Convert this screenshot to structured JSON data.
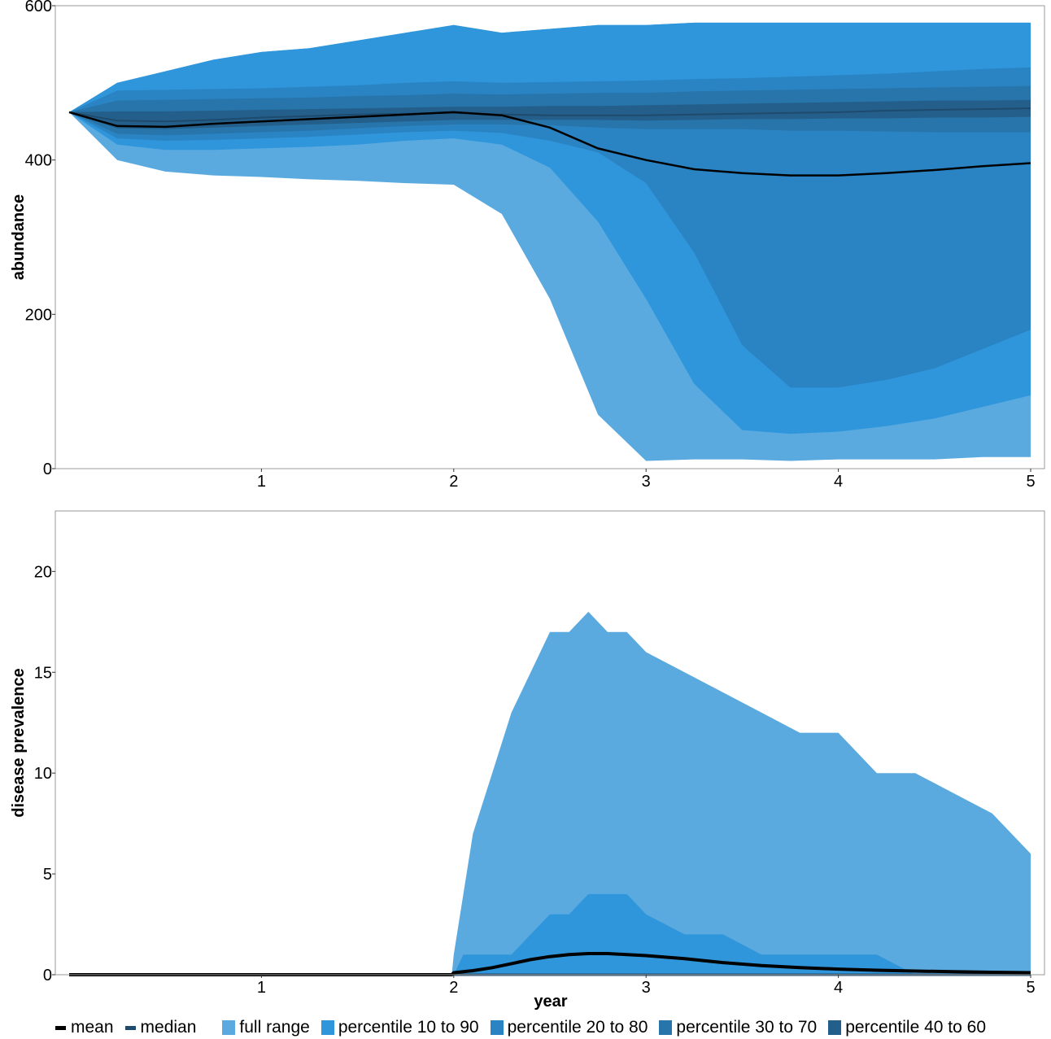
{
  "colors": {
    "full_range": "#5aaae0",
    "p10_90": "#2f96dc",
    "p20_80": "#2a84c3",
    "p30_70": "#2775aa",
    "p40_60": "#245f8b",
    "mean": "#000000",
    "median": "#1e4a6d"
  },
  "legend": [
    {
      "label": "mean",
      "kind": "line",
      "color": "#000000"
    },
    {
      "label": "median",
      "kind": "line",
      "color": "#1e4a6d"
    },
    {
      "label": "full range",
      "kind": "box",
      "color": "#5aaae0"
    },
    {
      "label": "percentile 10 to 90",
      "kind": "box",
      "color": "#2f96dc"
    },
    {
      "label": "percentile 20 to 80",
      "kind": "box",
      "color": "#2a84c3"
    },
    {
      "label": "percentile 30 to 70",
      "kind": "box",
      "color": "#2775aa"
    },
    {
      "label": "percentile 40 to 60",
      "kind": "box",
      "color": "#245f8b"
    }
  ],
  "chart_data": [
    {
      "type": "area",
      "ylabel": "abundance",
      "xlabel": "",
      "xlim": [
        0,
        5
      ],
      "ylim": [
        0,
        600
      ],
      "x_ticks": [
        "1",
        "2",
        "3",
        "4",
        "5"
      ],
      "y_ticks": [
        "0",
        "200",
        "400",
        "600"
      ],
      "grid": false,
      "x": [
        0,
        0.25,
        0.5,
        0.75,
        1,
        1.25,
        1.5,
        1.75,
        2,
        2.25,
        2.5,
        2.75,
        3,
        3.25,
        3.5,
        3.75,
        4,
        4.25,
        4.5,
        4.75,
        5
      ],
      "bands": [
        {
          "name": "full range",
          "lower": [
            462,
            400,
            385,
            380,
            378,
            375,
            373,
            370,
            368,
            330,
            220,
            70,
            10,
            12,
            12,
            10,
            12,
            12,
            12,
            15,
            15
          ],
          "upper": [
            462,
            500,
            515,
            530,
            540,
            545,
            555,
            565,
            575,
            565,
            570,
            575,
            575,
            578,
            578,
            578,
            578,
            578,
            578,
            578,
            578
          ]
        },
        {
          "name": "percentile 10 to 90",
          "lower": [
            462,
            420,
            413,
            413,
            415,
            417,
            420,
            425,
            428,
            420,
            390,
            320,
            220,
            110,
            50,
            45,
            48,
            55,
            65,
            80,
            95
          ]
        },
        {
          "name": "percentile 20 to 80",
          "lower": [
            462,
            428,
            425,
            426,
            428,
            430,
            433,
            436,
            438,
            435,
            425,
            410,
            370,
            280,
            160,
            105,
            105,
            115,
            130,
            155,
            180
          ],
          "upper": [
            462,
            490,
            491,
            492,
            493,
            495,
            497,
            500,
            502,
            500,
            501,
            502,
            503,
            505,
            506,
            508,
            510,
            512,
            515,
            518,
            520
          ]
        },
        {
          "name": "percentile 30 to 70",
          "lower": [
            462,
            434,
            432,
            434,
            436,
            438,
            441,
            444,
            446,
            446,
            445,
            442,
            440,
            440,
            440,
            438,
            438,
            437,
            436,
            436,
            436
          ],
          "upper": [
            462,
            477,
            478,
            479,
            480,
            481,
            483,
            484,
            486,
            485,
            486,
            487,
            487,
            489,
            490,
            491,
            492,
            493,
            494,
            495,
            496
          ]
        },
        {
          "name": "percentile 40 to 60",
          "lower": [
            462,
            441,
            440,
            442,
            444,
            446,
            448,
            450,
            452,
            452,
            452,
            452,
            451,
            452,
            453,
            453,
            454,
            454,
            455,
            455,
            456
          ],
          "upper": [
            462,
            463,
            463,
            464,
            465,
            466,
            467,
            468,
            469,
            469,
            470,
            470,
            471,
            472,
            473,
            474,
            475,
            476,
            477,
            477,
            478
          ]
        }
      ],
      "mean": [
        462,
        444,
        443,
        447,
        450,
        453,
        456,
        459,
        462,
        458,
        442,
        415,
        400,
        388,
        383,
        380,
        380,
        383,
        387,
        392,
        396
      ],
      "median": [
        462,
        451,
        450,
        452,
        455,
        457,
        459,
        460,
        461,
        459,
        458,
        458,
        458,
        459,
        460,
        461,
        462,
        464,
        465,
        466,
        467
      ]
    },
    {
      "type": "area",
      "ylabel": "disease prevalence",
      "xlabel": "year",
      "xlim": [
        0,
        5
      ],
      "ylim": [
        0,
        23
      ],
      "x_ticks": [
        "1",
        "2",
        "3",
        "4",
        "5"
      ],
      "y_ticks": [
        "0",
        "5",
        "10",
        "15",
        "20"
      ],
      "grid": false,
      "x": [
        0,
        1.99,
        2.0,
        2.05,
        2.1,
        2.2,
        2.3,
        2.4,
        2.5,
        2.6,
        2.7,
        2.8,
        2.9,
        3.0,
        3.2,
        3.4,
        3.6,
        3.8,
        4.0,
        4.2,
        4.4,
        4.6,
        4.8,
        5.0
      ],
      "bands": [
        {
          "name": "full range",
          "lower": [
            0,
            0,
            0,
            0,
            0,
            0,
            0,
            0,
            0,
            0,
            0,
            0,
            0,
            0,
            0,
            0,
            0,
            0,
            0,
            0,
            0,
            0,
            0,
            0
          ],
          "upper": [
            0,
            0,
            1,
            4,
            7,
            10,
            13,
            15,
            17,
            17,
            18,
            17,
            17,
            16,
            15,
            14,
            13,
            12,
            12,
            10,
            10,
            9,
            8,
            6
          ]
        },
        {
          "name": "percentile 10 to 90",
          "lower": [
            0,
            0,
            0,
            0,
            0,
            0,
            0,
            0,
            0,
            0,
            0,
            0,
            0,
            0,
            0,
            0,
            0,
            0,
            0,
            0,
            0,
            0,
            0,
            0
          ],
          "upper": [
            0,
            0,
            0,
            1,
            1,
            1,
            1,
            2,
            3,
            3,
            4,
            4,
            4,
            3,
            2,
            2,
            1,
            1,
            1,
            1,
            0,
            0,
            0,
            0
          ]
        }
      ],
      "mean": [
        0,
        0,
        0.1,
        0.15,
        0.2,
        0.35,
        0.55,
        0.75,
        0.9,
        1.0,
        1.05,
        1.05,
        1.0,
        0.95,
        0.8,
        0.6,
        0.45,
        0.35,
        0.28,
        0.22,
        0.18,
        0.15,
        0.12,
        0.1
      ],
      "median": [
        0,
        0,
        0,
        0,
        0,
        0,
        0,
        0,
        0,
        0,
        0,
        0,
        0,
        0,
        0,
        0,
        0,
        0,
        0,
        0,
        0,
        0,
        0,
        0
      ]
    }
  ]
}
